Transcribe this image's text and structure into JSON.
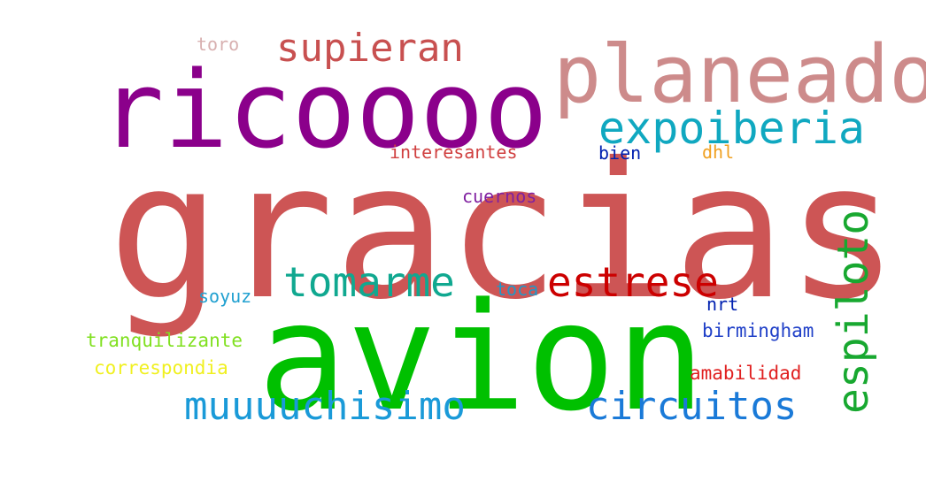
{
  "words": [
    {
      "text": "gracias",
      "color": "#cd5555"
    },
    {
      "text": "avion",
      "color": "#00c000"
    },
    {
      "text": "ricoooo",
      "color": "#8b008b"
    },
    {
      "text": "planeado",
      "color": "#cd8b8b"
    },
    {
      "text": "supieran",
      "color": "#c85050"
    },
    {
      "text": "expoiberia",
      "color": "#10a8c0"
    },
    {
      "text": "espiloto",
      "color": "#18a830"
    },
    {
      "text": "tomarme",
      "color": "#10a890"
    },
    {
      "text": "estrese",
      "color": "#cc0000"
    },
    {
      "text": "muuuuchisimo",
      "color": "#1a9ad8"
    },
    {
      "text": "circuitos",
      "color": "#1a7ad8"
    },
    {
      "text": "toro",
      "color": "#d8b0b0"
    },
    {
      "text": "interesantes",
      "color": "#d04040"
    },
    {
      "text": "bien",
      "color": "#0020b0"
    },
    {
      "text": "dhl",
      "color": "#f0a020"
    },
    {
      "text": "cuernos",
      "color": "#8020a0"
    },
    {
      "text": "soyuz",
      "color": "#20a0d0"
    },
    {
      "text": "toca",
      "color": "#2098c8"
    },
    {
      "text": "nrt",
      "color": "#0020b0"
    },
    {
      "text": "birmingham",
      "color": "#2040c8"
    },
    {
      "text": "tranquilizante",
      "color": "#80e020"
    },
    {
      "text": "correspondia",
      "color": "#f0f020"
    },
    {
      "text": "amabilidad",
      "color": "#e02020"
    }
  ]
}
